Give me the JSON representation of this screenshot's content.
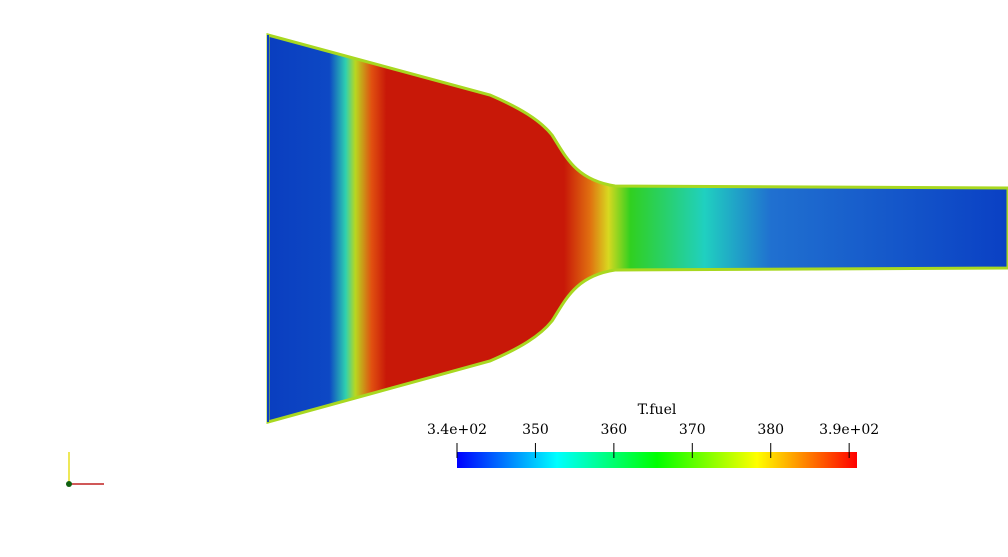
{
  "colorbar": {
    "title": "T.fuel",
    "range": [
      340,
      391
    ],
    "ticks": [
      {
        "value": 340,
        "label": "3.4e+02"
      },
      350,
      360,
      370,
      380,
      {
        "value": 390,
        "label": "3.9e+02"
      }
    ],
    "colormap": [
      "#0000ff",
      "#00ffff",
      "#00ff00",
      "#ffff00",
      "#ff0000"
    ]
  }
}
